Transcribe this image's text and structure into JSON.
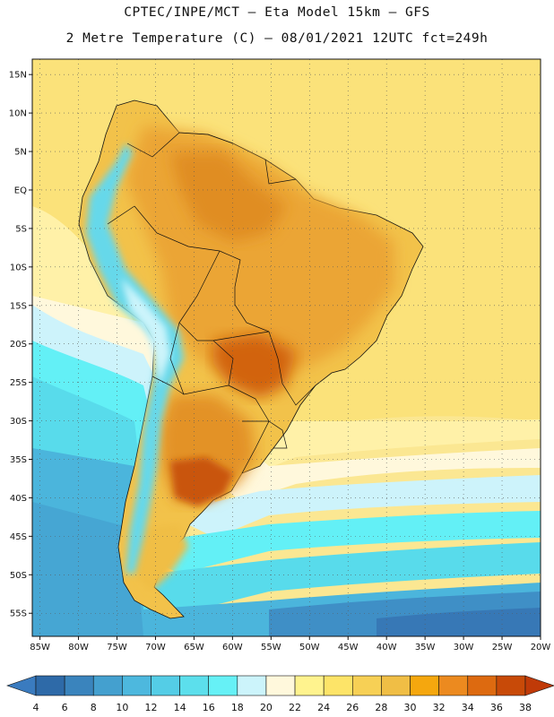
{
  "header": {
    "line1": "CPTEC/INPE/MCT –  Eta Model 15km – GFS",
    "line2": "2 Metre Temperature (C) – 08/01/2021 12UTC fct=249h"
  },
  "map": {
    "lon_range": [
      -86,
      -20
    ],
    "lat_range": [
      -58,
      17
    ],
    "lat_ticks": [
      {
        "value": 15,
        "label": "15N"
      },
      {
        "value": 10,
        "label": "10N"
      },
      {
        "value": 5,
        "label": "5N"
      },
      {
        "value": 0,
        "label": "EQ"
      },
      {
        "value": -5,
        "label": "5S"
      },
      {
        "value": -10,
        "label": "10S"
      },
      {
        "value": -15,
        "label": "15S"
      },
      {
        "value": -20,
        "label": "20S"
      },
      {
        "value": -25,
        "label": "25S"
      },
      {
        "value": -30,
        "label": "30S"
      },
      {
        "value": -35,
        "label": "35S"
      },
      {
        "value": -40,
        "label": "40S"
      },
      {
        "value": -45,
        "label": "45S"
      },
      {
        "value": -50,
        "label": "50S"
      },
      {
        "value": -55,
        "label": "55S"
      }
    ],
    "lon_ticks": [
      {
        "value": -85,
        "label": "85W"
      },
      {
        "value": -80,
        "label": "80W"
      },
      {
        "value": -75,
        "label": "75W"
      },
      {
        "value": -70,
        "label": "70W"
      },
      {
        "value": -65,
        "label": "65W"
      },
      {
        "value": -60,
        "label": "60W"
      },
      {
        "value": -55,
        "label": "55W"
      },
      {
        "value": -50,
        "label": "50W"
      },
      {
        "value": -45,
        "label": "45W"
      },
      {
        "value": -40,
        "label": "40W"
      },
      {
        "value": -35,
        "label": "35W"
      },
      {
        "value": -30,
        "label": "30W"
      },
      {
        "value": -25,
        "label": "25W"
      },
      {
        "value": -20,
        "label": "20W"
      }
    ]
  },
  "colorbar": {
    "labels": [
      "4",
      "6",
      "8",
      "10",
      "12",
      "14",
      "16",
      "18",
      "20",
      "22",
      "24",
      "26",
      "28",
      "30",
      "32",
      "34",
      "36",
      "38"
    ],
    "colors": [
      "#2e6aa8",
      "#3a84bd",
      "#44a0cf",
      "#4db8de",
      "#54cde6",
      "#5cdfec",
      "#66f1f6",
      "#ccf4fb",
      "#fff8dc",
      "#fff38e",
      "#fde468",
      "#f7d055",
      "#f0be45",
      "#f5a70e",
      "#ec8a1f",
      "#dd6a10",
      "#c84a08"
    ],
    "low_arrow": "#3a7bbf",
    "high_arrow": "#c03a08"
  }
}
